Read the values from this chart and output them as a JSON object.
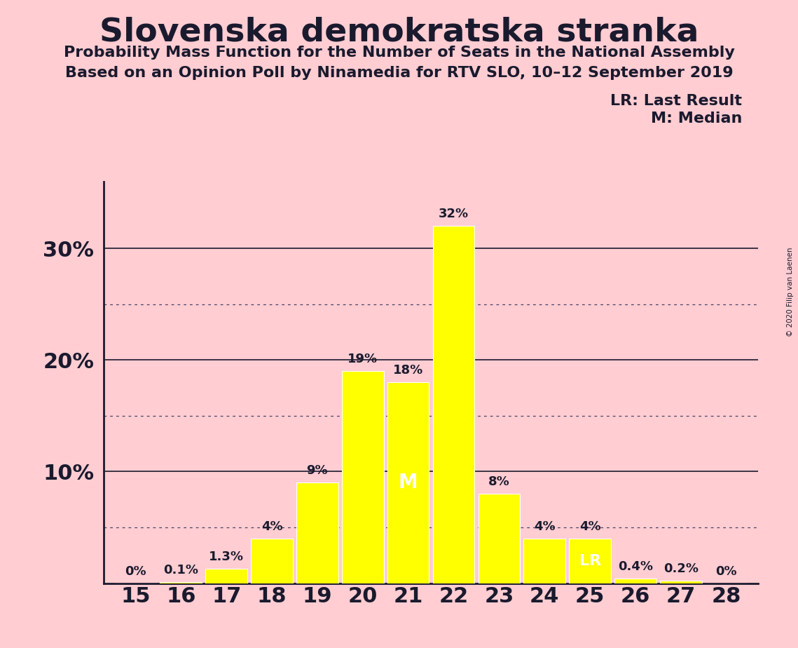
{
  "title": "Slovenska demokratska stranka",
  "subtitle1": "Probability Mass Function for the Number of Seats in the National Assembly",
  "subtitle2": "Based on an Opinion Poll by Ninamedia for RTV SLO, 10–12 September 2019",
  "copyright": "© 2020 Filip van Laenen",
  "categories": [
    15,
    16,
    17,
    18,
    19,
    20,
    21,
    22,
    23,
    24,
    25,
    26,
    27,
    28
  ],
  "values": [
    0.0,
    0.1,
    1.3,
    4.0,
    9.0,
    19.0,
    18.0,
    32.0,
    8.0,
    4.0,
    4.0,
    0.4,
    0.2,
    0.0
  ],
  "labels": [
    "0%",
    "0.1%",
    "1.3%",
    "4%",
    "9%",
    "19%",
    "18%",
    "32%",
    "8%",
    "4%",
    "4%",
    "0.4%",
    "0.2%",
    "0%"
  ],
  "bar_color": "#FFFF00",
  "background_color": "#FFCDD2",
  "text_color": "#1a1a2e",
  "grid_solid_color": "#1a1a2e",
  "grid_dot_color": "#444466",
  "median_seat": 21,
  "lr_seat": 25,
  "ylim": [
    0,
    36
  ],
  "legend_lr": "LR: Last Result",
  "legend_m": "M: Median",
  "label_fontsize": 13,
  "ytick_fontsize": 22,
  "xtick_fontsize": 22,
  "title_fontsize": 34,
  "subtitle_fontsize": 16,
  "legend_fontsize": 16
}
